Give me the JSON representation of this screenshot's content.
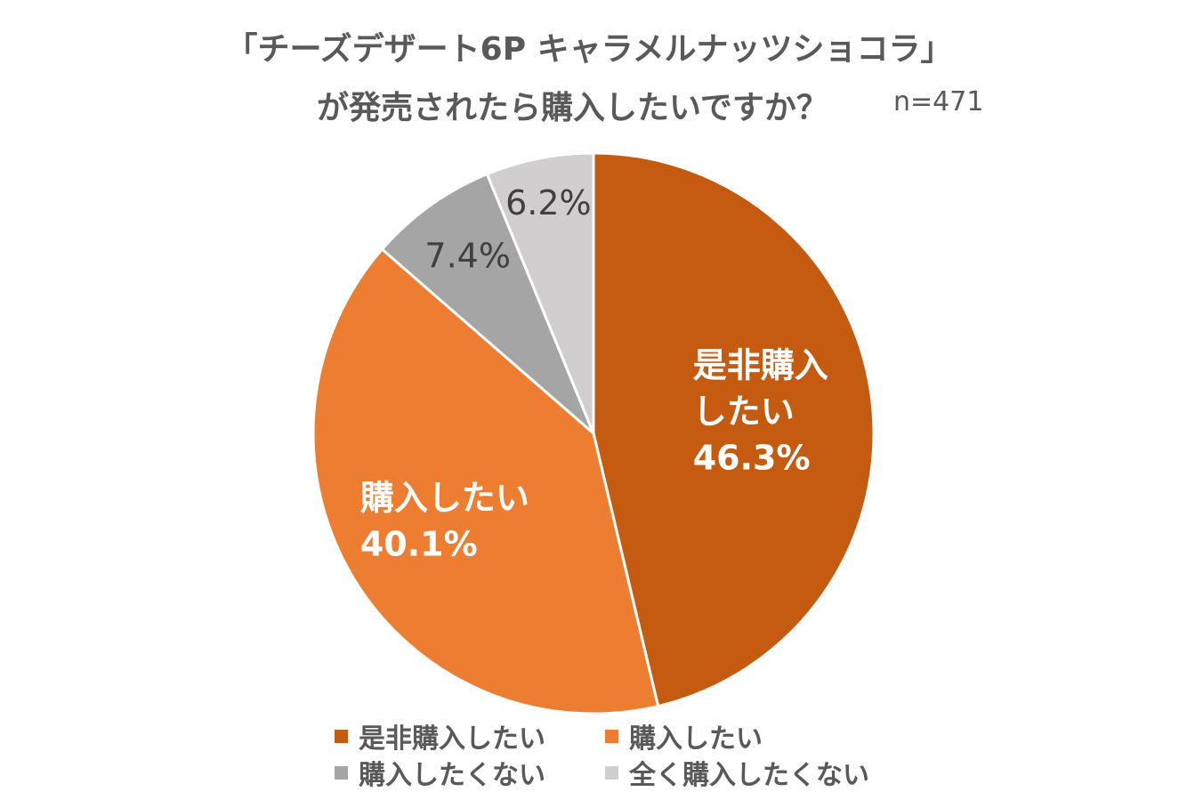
{
  "title": {
    "line1": "「チーズデザート6P キャラメルナッツショコラ」",
    "line2": "が発売されたら購入したいですか？",
    "sample_size": "n=471"
  },
  "chart_data": {
    "type": "pie",
    "title": "「チーズデザート6P キャラメルナッツショコラ」が発売されたら購入したいですか？",
    "sample_size": "n=471",
    "start_angle": "12 o'clock, clockwise",
    "slices": [
      {
        "label": "是非購入したい",
        "value": 46.3,
        "display": "46.3%",
        "color": "#C55A11",
        "label_lines": [
          "是非購入",
          "したい"
        ],
        "label_color": "#FFFFFF",
        "label_bold": true
      },
      {
        "label": "購入したい",
        "value": 40.1,
        "display": "40.1%",
        "color": "#ED7D31",
        "label_lines": [
          "購入したい"
        ],
        "label_color": "#FFFFFF",
        "label_bold": true
      },
      {
        "label": "購入したくない",
        "value": 7.4,
        "display": "7.4%",
        "color": "#A5A5A5",
        "label_lines": [],
        "label_color": "#404040",
        "label_bold": false
      },
      {
        "label": "全く購入したくない",
        "value": 6.2,
        "display": "6.2%",
        "color": "#D0CECE",
        "label_lines": [],
        "label_color": "#404040",
        "label_bold": false
      }
    ],
    "legend": {
      "placement": "bottom",
      "entries": [
        "是非購入したい",
        "購入したい",
        "購入したくない",
        "全く購入したくない"
      ]
    }
  }
}
